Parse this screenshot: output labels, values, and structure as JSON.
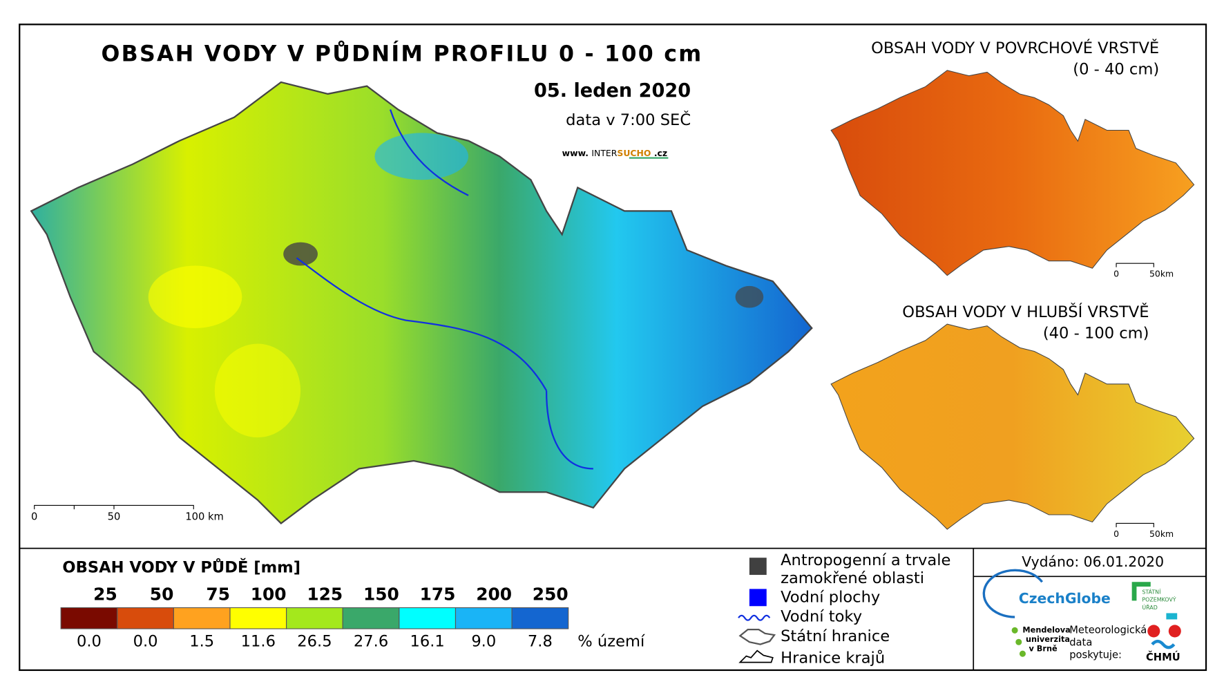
{
  "main_map": {
    "title": "OBSAH VODY V PŮDNÍM PROFILU 0 - 100 cm",
    "date": "05. leden 2020",
    "data_time": "data v 7:00 SEČ",
    "website": [
      "www.",
      "INTER",
      "SUCHO",
      ".cz"
    ],
    "scale_labels": [
      "0",
      "50",
      "100 km"
    ]
  },
  "inset_top": {
    "title": "OBSAH VODY V POVRCHOVÉ VRSTVĚ",
    "subtitle": "(0 - 40 cm)",
    "scale_labels": [
      "0",
      "50km"
    ]
  },
  "inset_bottom": {
    "title": "OBSAH VODY V HLUBŠÍ VRSTVĚ",
    "subtitle": "(40 - 100 cm)",
    "scale_labels": [
      "0",
      "50km"
    ]
  },
  "legend": {
    "title": "OBSAH VODY V PŮDĚ [mm]",
    "thresholds": [
      "25",
      "50",
      "75",
      "100",
      "125",
      "150",
      "175",
      "200",
      "250"
    ],
    "colors": [
      "#7a0a00",
      "#d84c0c",
      "#ffa21f",
      "#ffff00",
      "#a4e81c",
      "#3aa86a",
      "#00ffff",
      "#1ab4f6",
      "#1466d0"
    ],
    "percentages": [
      "0.0",
      "0.0",
      "1.5",
      "11.6",
      "26.5",
      "27.6",
      "16.1",
      "9.0",
      "7.8"
    ],
    "unit": "% území"
  },
  "symbols": {
    "items": [
      "Antropogenní a trvale",
      "zamokřené oblasti",
      "Vodní plochy",
      "Vodní toky",
      "Státní hranice",
      "Hranice krajů"
    ]
  },
  "issued": "Vydáno: 06.01.2020",
  "logos": {
    "czechglobe": "CzechGlobe",
    "spu": [
      "STÁTNÍ",
      "POZEMKOVÝ",
      "ÚŘAD"
    ],
    "mendelu": [
      "Mendelova",
      "univerzita",
      "v Brně"
    ],
    "meteo": [
      "Meteorologická",
      "data",
      "poskytuje:"
    ],
    "chmu": "ČHMÚ"
  }
}
